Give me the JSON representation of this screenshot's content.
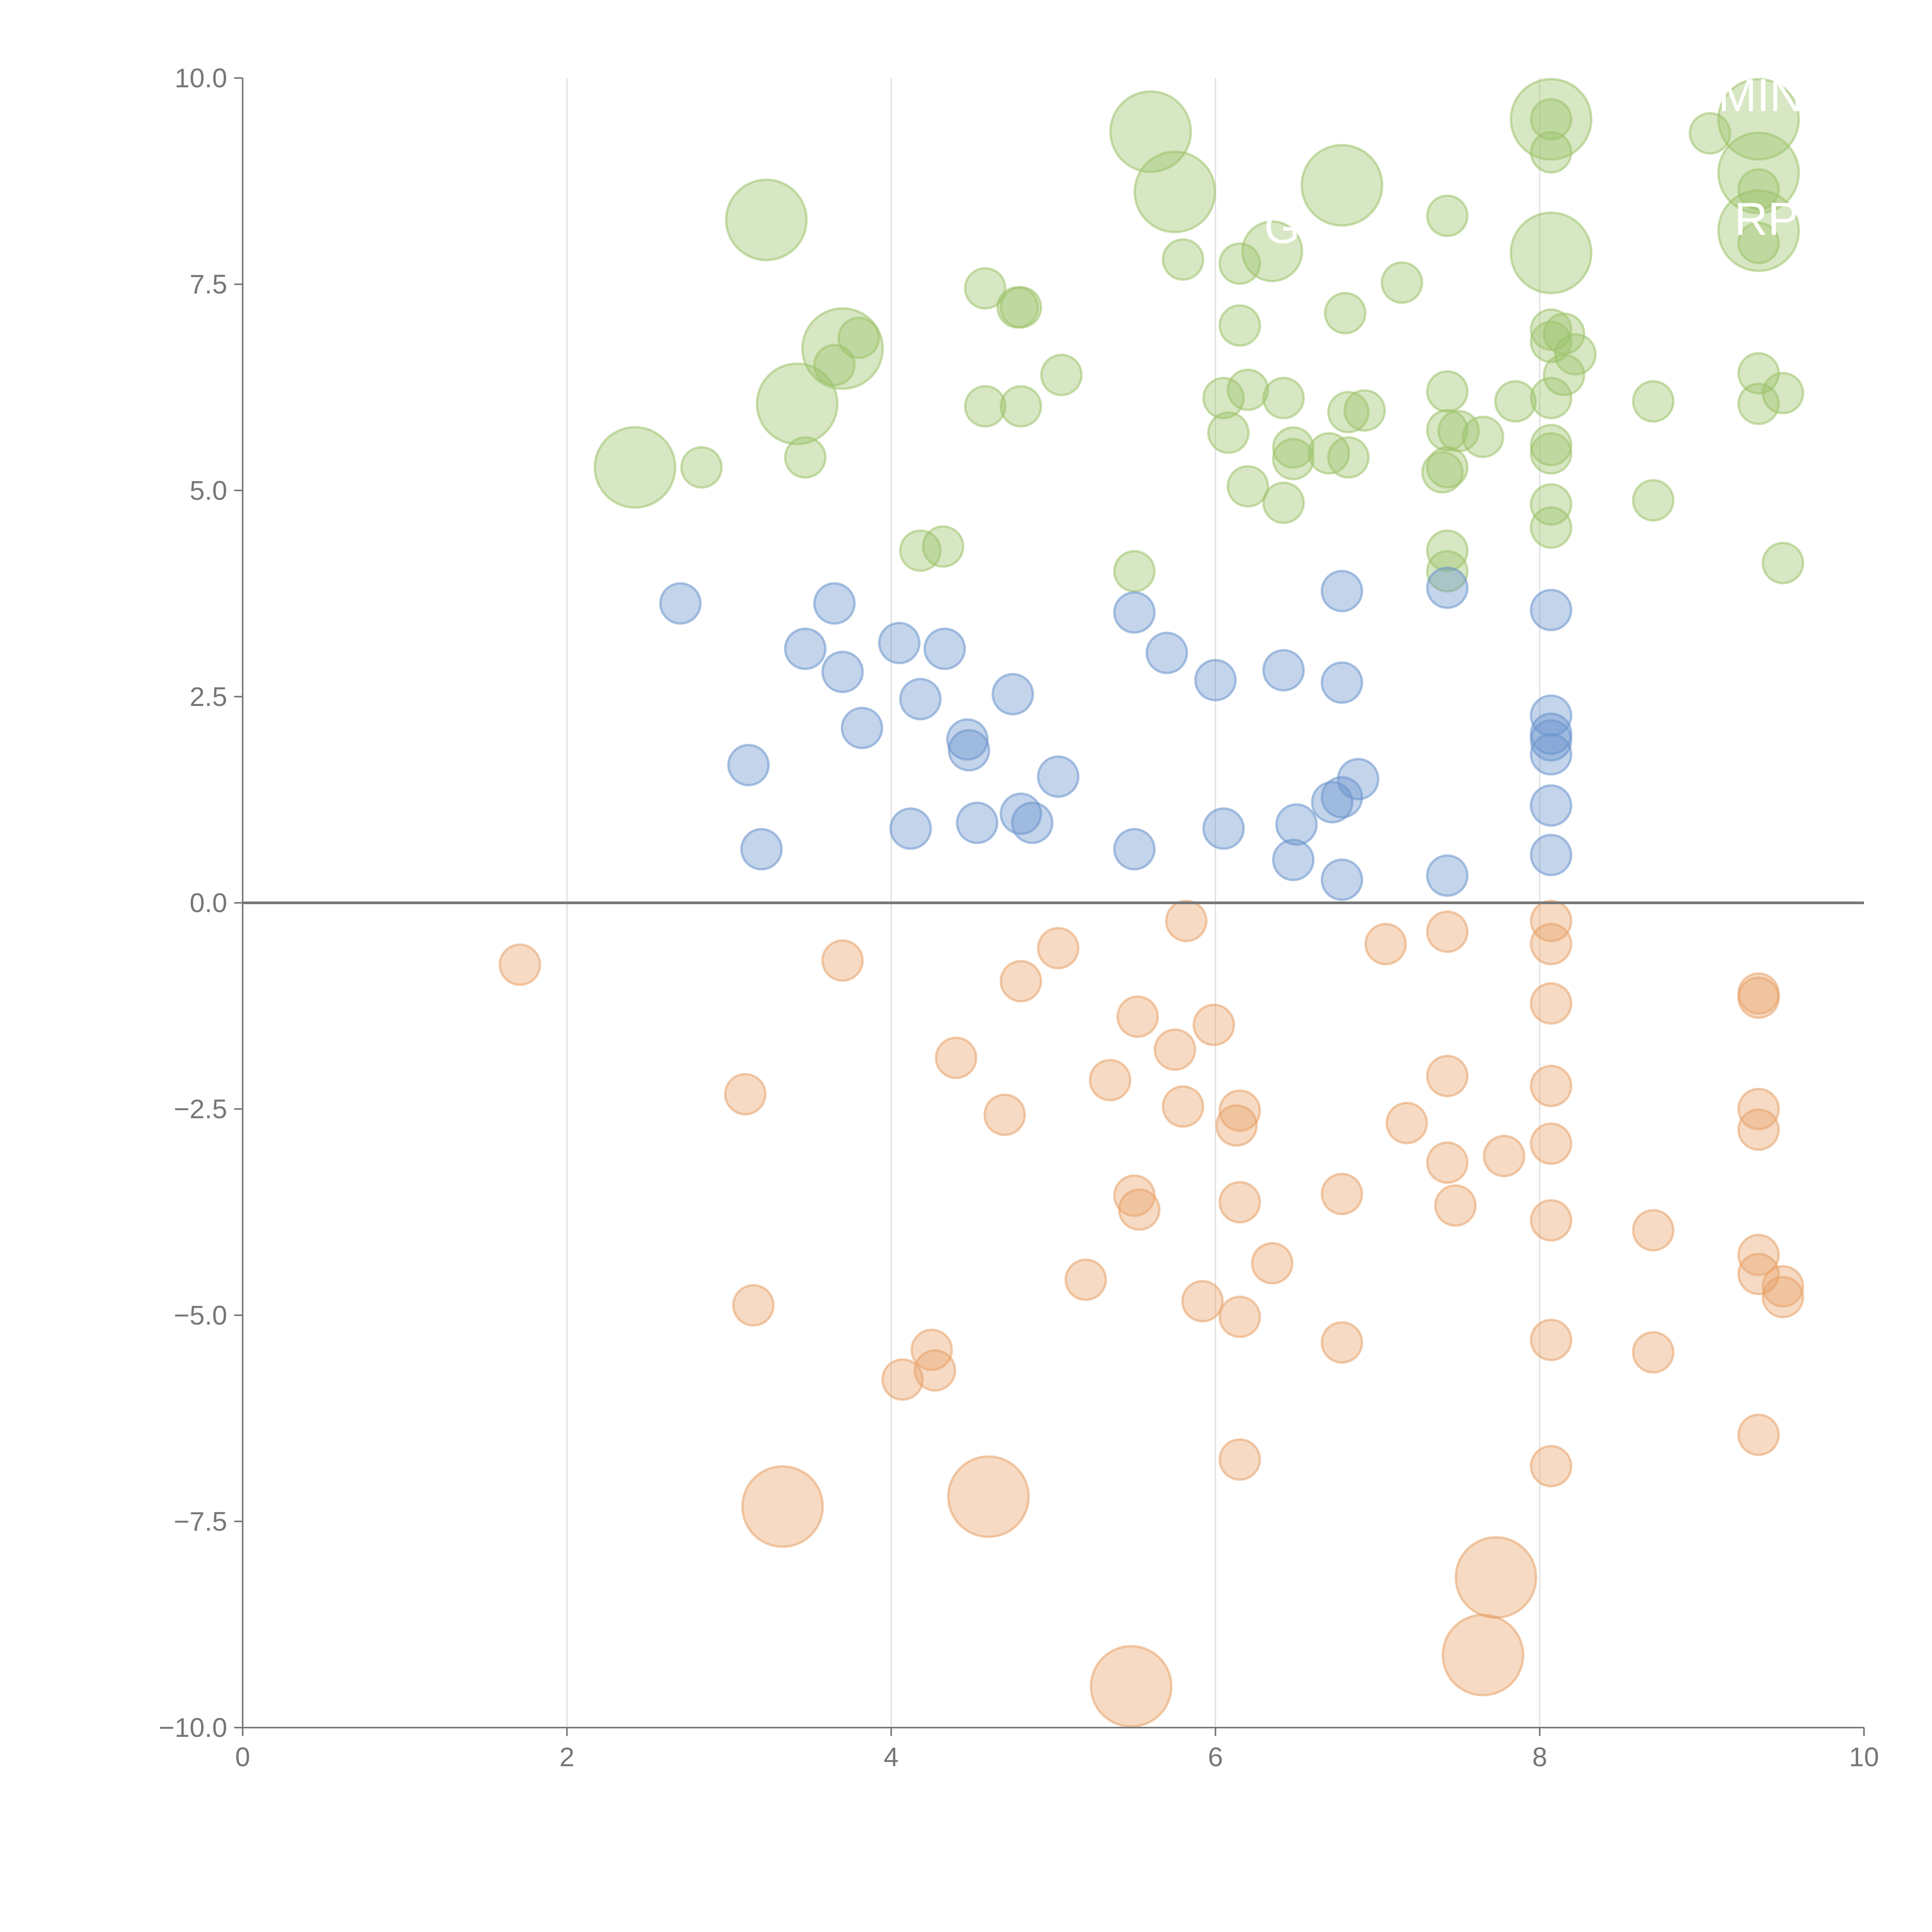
{
  "chart_data": {
    "type": "scatter",
    "title": "",
    "xlabel": "",
    "ylabel": "",
    "xlim": [
      0,
      10
    ],
    "ylim": [
      -10,
      10
    ],
    "xticks": [
      "0",
      "2",
      "4",
      "6",
      "8",
      "10"
    ],
    "xtick_values": [
      0,
      2,
      4,
      6,
      8,
      10
    ],
    "yticks": [
      "10.0",
      "7.5",
      "5.0",
      "2.5",
      "0.0",
      "−2.5",
      "−5.0",
      "−7.5",
      "−10.0"
    ],
    "ytick_values": [
      10,
      7.5,
      5,
      2.5,
      0,
      -2.5,
      -5,
      -7.5,
      -10
    ],
    "grid": "vertical lines at x = 2, 4, 6, 8",
    "zero_line": true,
    "legend": "none",
    "point_format": "[x, y, size]",
    "series": [
      {
        "name": "positive-high",
        "color": "#9cc26a",
        "points": [
          [
            8.07,
            9.5,
            1
          ],
          [
            9.05,
            9.33,
            1
          ],
          [
            8.07,
            9.1,
            1
          ],
          [
            9.35,
            8.65,
            1
          ],
          [
            7.43,
            8.33,
            1
          ],
          [
            9.35,
            8.0,
            1
          ],
          [
            5.8,
            7.8,
            1
          ],
          [
            6.15,
            7.75,
            1
          ],
          [
            7.15,
            7.52,
            1
          ],
          [
            4.58,
            7.45,
            1
          ],
          [
            4.8,
            7.22,
            1
          ],
          [
            4.78,
            7.22,
            1
          ],
          [
            6.15,
            7.0,
            1
          ],
          [
            6.8,
            7.15,
            1
          ],
          [
            8.07,
            6.95,
            1
          ],
          [
            8.15,
            6.9,
            1
          ],
          [
            8.07,
            6.8,
            1
          ],
          [
            3.8,
            6.85,
            1
          ],
          [
            3.65,
            6.52,
            1
          ],
          [
            8.22,
            6.65,
            1
          ],
          [
            5.05,
            6.4,
            1
          ],
          [
            8.15,
            6.4,
            1
          ],
          [
            9.35,
            6.42,
            1
          ],
          [
            6.05,
            6.12,
            1
          ],
          [
            6.2,
            6.22,
            1
          ],
          [
            6.42,
            6.12,
            1
          ],
          [
            4.58,
            6.02,
            1
          ],
          [
            4.8,
            6.02,
            1
          ],
          [
            7.43,
            6.2,
            1
          ],
          [
            7.85,
            6.08,
            1
          ],
          [
            8.07,
            6.12,
            1
          ],
          [
            8.7,
            6.08,
            1
          ],
          [
            9.35,
            6.05,
            1
          ],
          [
            9.5,
            6.18,
            1
          ],
          [
            6.82,
            5.95,
            1
          ],
          [
            6.92,
            5.97,
            1
          ],
          [
            6.08,
            5.7,
            1
          ],
          [
            7.43,
            5.73,
            1
          ],
          [
            7.5,
            5.72,
            1
          ],
          [
            7.65,
            5.65,
            1
          ],
          [
            8.07,
            5.55,
            1
          ],
          [
            8.07,
            5.45,
            1
          ],
          [
            6.48,
            5.52,
            1
          ],
          [
            6.48,
            5.38,
            1
          ],
          [
            6.7,
            5.45,
            1
          ],
          [
            6.82,
            5.4,
            1
          ],
          [
            3.47,
            5.4,
            1
          ],
          [
            2.83,
            5.28,
            1
          ],
          [
            7.43,
            5.28,
            1
          ],
          [
            7.4,
            5.22,
            1
          ],
          [
            6.2,
            5.05,
            1
          ],
          [
            6.42,
            4.85,
            1
          ],
          [
            8.07,
            4.83,
            1
          ],
          [
            8.7,
            4.88,
            1
          ],
          [
            8.07,
            4.55,
            1
          ],
          [
            7.43,
            4.27,
            1
          ],
          [
            4.18,
            4.27,
            1
          ],
          [
            4.32,
            4.32,
            1
          ],
          [
            5.5,
            4.02,
            1
          ],
          [
            7.43,
            4.02,
            1
          ],
          [
            9.5,
            4.12,
            1
          ],
          [
            5.6,
            9.35,
            4
          ],
          [
            8.07,
            9.5,
            4
          ],
          [
            9.35,
            9.5,
            4
          ],
          [
            9.35,
            8.85,
            4
          ],
          [
            6.78,
            8.7,
            4
          ],
          [
            5.75,
            8.62,
            4
          ],
          [
            3.23,
            8.28,
            4
          ],
          [
            8.07,
            7.88,
            4
          ],
          [
            9.35,
            8.15,
            4
          ],
          [
            6.35,
            7.9,
            2.2
          ],
          [
            3.7,
            6.72,
            4
          ],
          [
            3.42,
            6.05,
            4
          ],
          [
            2.42,
            5.28,
            4
          ]
        ]
      },
      {
        "name": "positive-low",
        "color": "#6a94cc",
        "points": [
          [
            2.7,
            3.63,
            1
          ],
          [
            3.65,
            3.63,
            1
          ],
          [
            3.47,
            3.08,
            1
          ],
          [
            4.05,
            3.15,
            1
          ],
          [
            4.33,
            3.08,
            1
          ],
          [
            3.7,
            2.8,
            1
          ],
          [
            5.5,
            3.52,
            1
          ],
          [
            5.7,
            3.03,
            1
          ],
          [
            6.0,
            2.7,
            1
          ],
          [
            6.42,
            2.82,
            1
          ],
          [
            6.78,
            3.78,
            1
          ],
          [
            6.78,
            2.67,
            1
          ],
          [
            7.43,
            3.82,
            1
          ],
          [
            8.07,
            3.55,
            1
          ],
          [
            4.18,
            2.47,
            1
          ],
          [
            4.75,
            2.53,
            1
          ],
          [
            3.82,
            2.12,
            1
          ],
          [
            4.47,
            1.98,
            1
          ],
          [
            4.48,
            1.85,
            1
          ],
          [
            8.07,
            2.27,
            1
          ],
          [
            8.07,
            2.05,
            1
          ],
          [
            8.07,
            1.97,
            1
          ],
          [
            8.07,
            1.8,
            1
          ],
          [
            3.12,
            1.67,
            1
          ],
          [
            5.03,
            1.53,
            1
          ],
          [
            6.88,
            1.5,
            1
          ],
          [
            6.78,
            1.28,
            1
          ],
          [
            6.72,
            1.22,
            1
          ],
          [
            8.07,
            1.18,
            1
          ],
          [
            4.8,
            1.08,
            1
          ],
          [
            4.87,
            0.97,
            1
          ],
          [
            4.53,
            0.97,
            1
          ],
          [
            4.12,
            0.9,
            1
          ],
          [
            6.05,
            0.9,
            1
          ],
          [
            6.5,
            0.95,
            1
          ],
          [
            3.2,
            0.65,
            1
          ],
          [
            5.5,
            0.65,
            1
          ],
          [
            6.48,
            0.52,
            1
          ],
          [
            8.07,
            0.58,
            1
          ],
          [
            6.78,
            0.28,
            1
          ],
          [
            7.43,
            0.33,
            1
          ]
        ]
      },
      {
        "name": "negative",
        "color": "#e8a36a",
        "points": [
          [
            1.71,
            -0.75,
            1
          ],
          [
            3.7,
            -0.7,
            1
          ],
          [
            4.8,
            -0.95,
            1
          ],
          [
            5.03,
            -0.55,
            1
          ],
          [
            5.82,
            -0.22,
            1
          ],
          [
            7.05,
            -0.5,
            1
          ],
          [
            7.43,
            -0.35,
            1
          ],
          [
            8.07,
            -0.22,
            1
          ],
          [
            8.07,
            -0.5,
            1
          ],
          [
            8.07,
            -1.22,
            1
          ],
          [
            9.35,
            -1.1,
            1
          ],
          [
            9.35,
            -1.15,
            1
          ],
          [
            5.52,
            -1.38,
            1
          ],
          [
            5.99,
            -1.48,
            1
          ],
          [
            5.75,
            -1.78,
            1
          ],
          [
            4.4,
            -1.88,
            1
          ],
          [
            3.1,
            -2.32,
            1
          ],
          [
            5.35,
            -2.15,
            1
          ],
          [
            4.7,
            -2.57,
            1
          ],
          [
            5.8,
            -2.47,
            1
          ],
          [
            6.15,
            -2.52,
            1
          ],
          [
            6.13,
            -2.7,
            1
          ],
          [
            7.18,
            -2.67,
            1
          ],
          [
            7.43,
            -2.1,
            1
          ],
          [
            8.07,
            -2.22,
            1
          ],
          [
            9.35,
            -2.5,
            1
          ],
          [
            9.35,
            -2.75,
            1
          ],
          [
            8.07,
            -2.92,
            1
          ],
          [
            7.43,
            -3.15,
            1
          ],
          [
            7.78,
            -3.07,
            1
          ],
          [
            6.78,
            -3.53,
            1
          ],
          [
            5.5,
            -3.55,
            1
          ],
          [
            5.53,
            -3.72,
            1
          ],
          [
            6.15,
            -3.63,
            1
          ],
          [
            7.48,
            -3.67,
            1
          ],
          [
            8.07,
            -3.85,
            1
          ],
          [
            8.7,
            -3.97,
            1
          ],
          [
            6.35,
            -4.37,
            1
          ],
          [
            5.2,
            -4.57,
            1
          ],
          [
            9.35,
            -4.27,
            1
          ],
          [
            9.35,
            -4.5,
            1
          ],
          [
            9.5,
            -4.65,
            1
          ],
          [
            9.5,
            -4.78,
            1
          ],
          [
            3.15,
            -4.88,
            1
          ],
          [
            5.92,
            -4.83,
            1
          ],
          [
            6.15,
            -5.02,
            1
          ],
          [
            6.78,
            -5.33,
            1
          ],
          [
            8.07,
            -5.3,
            1
          ],
          [
            8.7,
            -5.45,
            1
          ],
          [
            4.25,
            -5.42,
            1
          ],
          [
            4.27,
            -5.67,
            1
          ],
          [
            4.07,
            -5.78,
            1
          ],
          [
            9.35,
            -6.45,
            1
          ],
          [
            6.15,
            -6.75,
            1
          ],
          [
            8.07,
            -6.83,
            1
          ],
          [
            3.33,
            -7.32,
            4
          ],
          [
            4.6,
            -7.2,
            4
          ],
          [
            7.73,
            -8.18,
            4
          ],
          [
            7.65,
            -9.12,
            4
          ],
          [
            5.48,
            -9.5,
            4
          ]
        ]
      }
    ],
    "annotations": [
      {
        "text": "MIN",
        "x": 9.1,
        "y": 9.6
      },
      {
        "text": "RP",
        "x": 9.2,
        "y": 8.1
      },
      {
        "text": "G",
        "x": 6.3,
        "y": 8.0
      }
    ]
  }
}
